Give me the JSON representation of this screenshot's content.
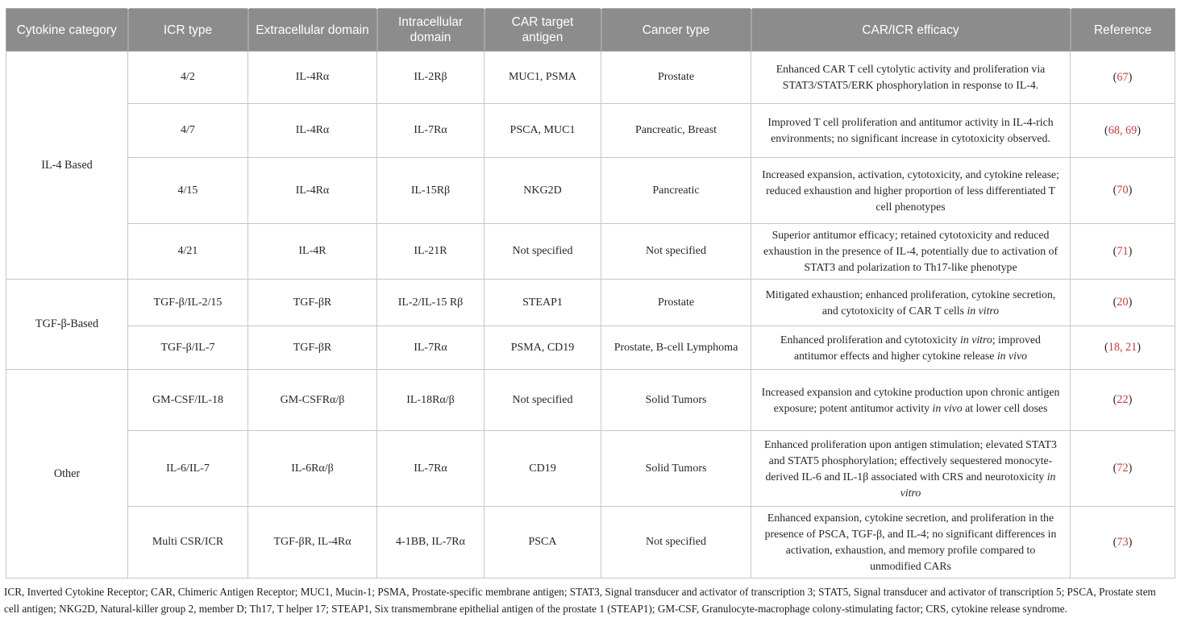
{
  "table": {
    "columns": [
      {
        "key": "category",
        "label": "Cytokine category"
      },
      {
        "key": "icr_type",
        "label": "ICR type"
      },
      {
        "key": "extracellular",
        "label": "Extracellular domain"
      },
      {
        "key": "intracellular",
        "label": "Intracellular domain"
      },
      {
        "key": "antigen",
        "label": "CAR target antigen"
      },
      {
        "key": "cancer",
        "label": "Cancer type"
      },
      {
        "key": "efficacy",
        "label": "CAR/ICR efficacy"
      },
      {
        "key": "reference",
        "label": "Reference"
      }
    ],
    "groups": [
      {
        "category": "IL-4 Based",
        "rows": [
          {
            "icr_type": "4/2",
            "extracellular": "IL-4Rα",
            "intracellular": "IL-2Rβ",
            "antigen": "MUC1, PSMA",
            "cancer": "Prostate",
            "efficacy": "Enhanced CAR T cell cytolytic activity and proliferation via STAT3/STAT5/ERK phosphorylation in response to IL-4.",
            "references": [
              "67"
            ]
          },
          {
            "icr_type": "4/7",
            "extracellular": "IL-4Rα",
            "intracellular": "IL-7Rα",
            "antigen": "PSCA, MUC1",
            "cancer": "Pancreatic, Breast",
            "efficacy": "Improved T cell proliferation and antitumor activity in IL-4-rich environments; no significant increase in cytotoxicity observed.",
            "references": [
              "68",
              "69"
            ]
          },
          {
            "icr_type": "4/15",
            "extracellular": "IL-4Rα",
            "intracellular": "IL-15Rβ",
            "antigen": "NKG2D",
            "cancer": "Pancreatic",
            "efficacy": "Increased expansion, activation, cytotoxicity, and cytokine release; reduced exhaustion and higher proportion of less differentiated T cell phenotypes",
            "references": [
              "70"
            ]
          },
          {
            "icr_type": "4/21",
            "extracellular": "IL-4R",
            "intracellular": "IL-21R",
            "antigen": "Not specified",
            "cancer": "Not specified",
            "efficacy": "Superior antitumor efficacy; retained cytotoxicity and reduced exhaustion in the presence of IL-4, potentially due to activation of STAT3 and polarization to Th17-like phenotype",
            "references": [
              "71"
            ]
          }
        ]
      },
      {
        "category": "TGF-β-Based",
        "rows": [
          {
            "icr_type": "TGF-β/IL-2/15",
            "extracellular": "TGF-βR",
            "intracellular": "IL-2/IL-15 Rβ",
            "antigen": "STEAP1",
            "cancer": "Prostate",
            "efficacy": "Mitigated exhaustion; enhanced proliferation, cytokine secretion, and cytotoxicity of CAR T cells *in vitro*",
            "references": [
              "20"
            ]
          },
          {
            "icr_type": "TGF-β/IL-7",
            "extracellular": "TGF-βR",
            "intracellular": "IL-7Rα",
            "antigen": "PSMA, CD19",
            "cancer": "Prostate, B-cell Lymphoma",
            "efficacy": "Enhanced proliferation and cytotoxicity *in vitro*; improved antitumor effects and higher cytokine release *in vivo*",
            "references": [
              "18",
              "21"
            ]
          }
        ]
      },
      {
        "category": "Other",
        "rows": [
          {
            "icr_type": "GM-CSF/IL-18",
            "extracellular": "GM-CSFRα/β",
            "intracellular": "IL-18Rα/β",
            "antigen": "Not specified",
            "cancer": "Solid Tumors",
            "efficacy": "Increased expansion and cytokine production upon chronic antigen exposure; potent antitumor activity *in vivo* at lower cell doses",
            "references": [
              "22"
            ]
          },
          {
            "icr_type": "IL-6/IL-7",
            "extracellular": "IL-6Rα/β",
            "intracellular": "IL-7Rα",
            "antigen": "CD19",
            "cancer": "Solid Tumors",
            "efficacy": "Enhanced proliferation upon antigen stimulation; elevated STAT3 and STAT5 phosphorylation; effectively sequestered monocyte-derived IL-6 and IL-1β associated with CRS and neurotoxicity *in vitro*",
            "references": [
              "72"
            ]
          },
          {
            "icr_type": "Multi CSR/ICR",
            "extracellular": "TGF-βR, IL-4Rα",
            "intracellular": "4-1BB, IL-7Rα",
            "antigen": "PSCA",
            "cancer": "Not specified",
            "efficacy": "Enhanced expansion, cytokine secretion, and proliferation in the presence of PSCA, TGF-β, and IL-4; no significant differences in activation, exhaustion, and memory profile compared to unmodified CARs",
            "references": [
              "73"
            ]
          }
        ]
      }
    ],
    "footnote": "ICR, Inverted Cytokine Receptor; CAR, Chimeric Antigen Receptor; MUC1, Mucin-1; PSMA, Prostate-specific membrane antigen; STAT3, Signal transducer and activator of transcription 3; STAT5, Signal transducer and activator of transcription 5; PSCA, Prostate stem cell antigen; NKG2D, Natural-killer group 2, member D; Th17, T helper 17; STEAP1, Six transmembrane epithelial antigen of the prostate 1 (STEAP1); GM-CSF, Granulocyte-macrophage colony-stimulating factor; CRS, cytokine release syndrome."
  },
  "colors": {
    "header_bg": "#8c8c8c",
    "header_text": "#ffffff",
    "reference_red": "#c5393c",
    "border": "#c6c6c6",
    "border_strong": "#a8a8a8",
    "text": "#262626"
  }
}
